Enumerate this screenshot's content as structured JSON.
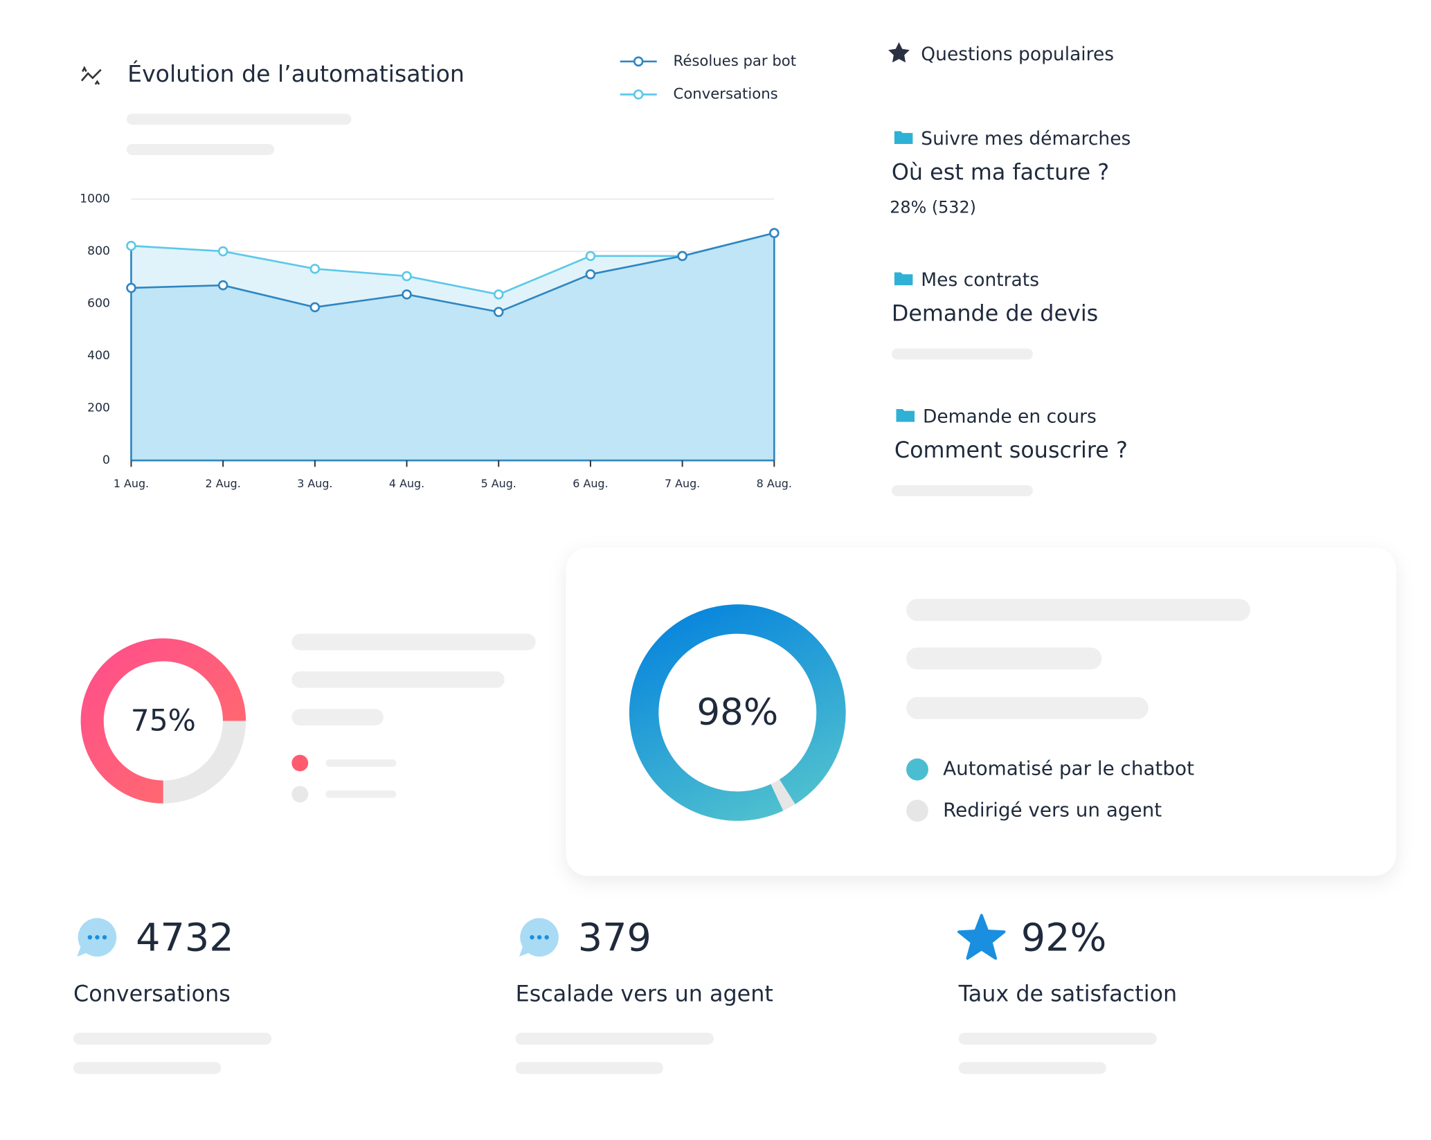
{
  "header": {
    "title": "Évolution de l’automatisation"
  },
  "chart_data": [
    {
      "type": "line",
      "categories": [
        "1 Aug.",
        "2 Aug.",
        "3 Aug.",
        "4 Aug.",
        "5 Aug.",
        "6 Aug.",
        "7 Aug.",
        "8 Aug."
      ],
      "series": [
        {
          "name": "Résolues par bot",
          "color": "#2f86c1",
          "fill": "#bfe5f7",
          "values": [
            660,
            670,
            586,
            635,
            568,
            712,
            782,
            870
          ]
        },
        {
          "name": "Conversations",
          "color": "#5cc8e8",
          "fill": "#e0f3fb",
          "values": [
            821,
            800,
            733,
            705,
            635,
            782,
            782,
            870
          ]
        }
      ],
      "ylim": [
        0,
        1000
      ],
      "yticks": [
        0,
        200,
        400,
        600,
        800,
        1000
      ],
      "grid": true,
      "legend": "top-right"
    },
    {
      "type": "donut",
      "center_label": "75%",
      "values": [
        75,
        25
      ],
      "colors": [
        "#ff5a7e",
        "#e8e8e8"
      ]
    },
    {
      "type": "donut",
      "center_label": "98%",
      "series": [
        {
          "name": "Automatisé par le chatbot",
          "color": "#4bbdd1",
          "values": [
            98
          ]
        },
        {
          "name": "Redirigé vers un agent",
          "color": "#e6e6e6",
          "values": [
            2
          ]
        }
      ]
    }
  ],
  "questions": {
    "title": "Questions populaires",
    "items": [
      {
        "category": "Suivre mes démarches",
        "question": "Où est ma facture ?",
        "stat": "28% (532)"
      },
      {
        "category": "Mes contrats",
        "question": "Demande de devis"
      },
      {
        "category": "Demande en cours",
        "question": "Comment souscrire  ?"
      }
    ]
  },
  "stats": [
    {
      "value": 4732,
      "label": "Conversations"
    },
    {
      "value": 379,
      "label": "Escalade vers un agent"
    },
    {
      "value": "92%",
      "label": "Taux de satisfaction"
    }
  ]
}
